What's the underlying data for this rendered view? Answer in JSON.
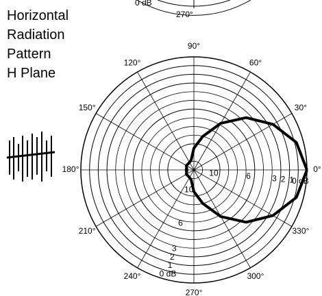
{
  "fragment": {
    "labels": [
      "0 dB",
      "270°"
    ]
  },
  "chart_data": {
    "type": "polar",
    "title": [
      "Horizontal",
      "Radiation",
      "Pattern",
      "H Plane"
    ],
    "angle_ticks": [
      {
        "value": 0,
        "label": "0°"
      },
      {
        "value": 30,
        "label": "30°"
      },
      {
        "value": 60,
        "label": "60°"
      },
      {
        "value": 90,
        "label": "90°"
      },
      {
        "value": 120,
        "label": "120°"
      },
      {
        "value": 150,
        "label": "150°"
      },
      {
        "value": 180,
        "label": "180°"
      },
      {
        "value": 210,
        "label": "210°"
      },
      {
        "value": 240,
        "label": "240°"
      },
      {
        "value": 270,
        "label": "270°"
      },
      {
        "value": 300,
        "label": "300°"
      },
      {
        "value": 330,
        "label": "330°"
      }
    ],
    "rlim": [
      13,
      0
    ],
    "rticks": [
      {
        "value": 0,
        "label": "0 dB"
      },
      1,
      2,
      3,
      6,
      10
    ],
    "rings": [
      4,
      5,
      7,
      8,
      9,
      12
    ],
    "grid": true,
    "series": [
      {
        "color": "#000000",
        "angles": [
          0,
          15,
          30,
          45,
          60,
          75,
          90,
          105,
          120,
          150,
          180,
          210,
          240,
          255,
          270,
          285,
          300,
          315,
          330,
          345,
          360
        ],
        "values": [
          0,
          0.8,
          2.5,
          4.5,
          6.8,
          9,
          10.5,
          11.8,
          12,
          12,
          12.2,
          12,
          12,
          11.8,
          10.5,
          9,
          6.8,
          4.5,
          2.5,
          0.8,
          0
        ]
      }
    ]
  }
}
